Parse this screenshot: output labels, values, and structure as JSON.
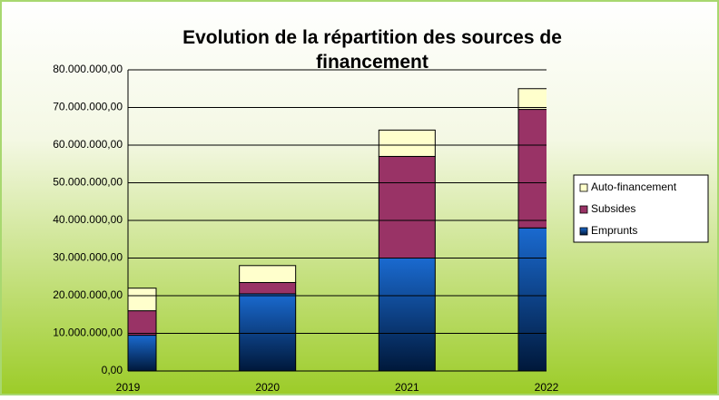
{
  "chart_data": {
    "type": "stacked-bar",
    "title": "Evolution de la répartition des sources de financement",
    "categories": [
      "2019",
      "2020",
      "2021",
      "2022"
    ],
    "series": [
      {
        "name": "Emprunts",
        "color": "#1060c0",
        "values": [
          9500000,
          20500000,
          30000000,
          38000000
        ]
      },
      {
        "name": "Subsides",
        "color": "#993366",
        "values": [
          6500000,
          3000000,
          27000000,
          31500000
        ]
      },
      {
        "name": "Auto-financement",
        "color": "#ffffcc",
        "values": [
          6000000,
          4500000,
          7000000,
          5500000
        ]
      }
    ],
    "ylim": [
      0,
      80000000
    ],
    "yticks": [
      {
        "value": 0,
        "label": "0,00"
      },
      {
        "value": 10000000,
        "label": "10.000.000,00"
      },
      {
        "value": 20000000,
        "label": "20.000.000,00"
      },
      {
        "value": 30000000,
        "label": "30.000.000,00"
      },
      {
        "value": 40000000,
        "label": "40.000.000,00"
      },
      {
        "value": 50000000,
        "label": "50.000.000,00"
      },
      {
        "value": 60000000,
        "label": "60.000.000,00"
      },
      {
        "value": 70000000,
        "label": "70.000.000,00"
      },
      {
        "value": 80000000,
        "label": "80.000.000,00"
      }
    ],
    "grid": true,
    "legend": "right"
  }
}
